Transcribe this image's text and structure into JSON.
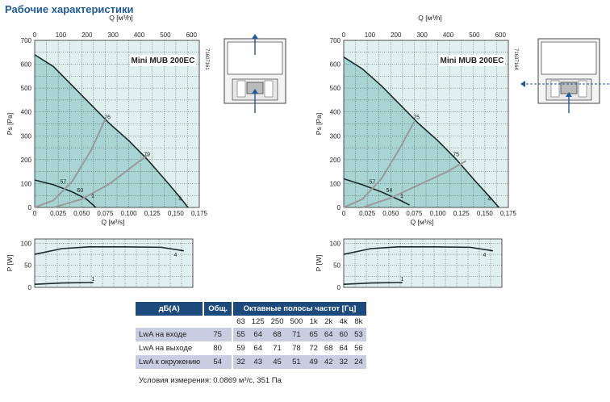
{
  "title": "Рабочие характеристики",
  "charts": [
    {
      "model": "Mini MUB 200EC",
      "code": "71607161",
      "top_axis_label": "Q [м³/h]",
      "top_ticks": [
        "0",
        "100",
        "200",
        "300",
        "400",
        "500",
        "600"
      ],
      "bottom_axis_label": "Q [м³/s]",
      "bottom_ticks": [
        "0",
        "0,025",
        "0,050",
        "0,075",
        "0,100",
        "0,125",
        "0,150",
        "0,175"
      ],
      "ps_label": "Ps [Pa]",
      "ps_ticks": [
        "0",
        "100",
        "200",
        "300",
        "400",
        "500",
        "600",
        "700"
      ],
      "p_label": "P [W]",
      "p_ticks": [
        "0",
        "50",
        "100"
      ],
      "curve_labels": [
        "76",
        "79",
        "57",
        "60",
        "4",
        "1",
        "4",
        "1"
      ]
    },
    {
      "model": "Mini MUB 200EC",
      "code": "71637164",
      "top_axis_label": "Q [м³/h]",
      "top_ticks": [
        "0",
        "100",
        "200",
        "300",
        "400",
        "500",
        "600"
      ],
      "bottom_axis_label": "Q [м³/s]",
      "bottom_ticks": [
        "0",
        "0,025",
        "0,050",
        "0,075",
        "0,100",
        "0,125",
        "0,150",
        "0,175"
      ],
      "ps_label": "Ps [Pa]",
      "ps_ticks": [
        "0",
        "100",
        "200",
        "300",
        "400",
        "500",
        "600",
        "700"
      ],
      "p_label": "P [W]",
      "p_ticks": [
        "0",
        "50",
        "100"
      ],
      "curve_labels": [
        "75",
        "75",
        "57",
        "54",
        "4",
        "1",
        "4",
        "1"
      ]
    }
  ],
  "chart_data": [
    {
      "type": "line",
      "title": "Mini MUB 200EC",
      "xlabel": "Q [м³/s]",
      "ylabel": "Ps [Pa]",
      "xlim": [
        0,
        0.175
      ],
      "ylim": [
        0,
        700
      ],
      "series": [
        {
          "name": "4",
          "x": [
            0,
            0.02,
            0.04,
            0.06,
            0.08,
            0.1,
            0.12,
            0.14,
            0.155,
            0.163
          ],
          "y": [
            640,
            590,
            510,
            430,
            350,
            280,
            200,
            110,
            40,
            0
          ]
        },
        {
          "name": "1",
          "x": [
            0,
            0.02,
            0.04,
            0.055,
            0.065
          ],
          "y": [
            115,
            95,
            65,
            35,
            0
          ]
        },
        {
          "name": "76",
          "x": [
            0,
            0.02,
            0.04,
            0.06,
            0.075
          ],
          "y": [
            0,
            30,
            110,
            240,
            370
          ]
        },
        {
          "name": "79",
          "x": [
            0.02,
            0.05,
            0.08,
            0.1,
            0.12
          ],
          "y": [
            0,
            35,
            100,
            160,
            220
          ]
        }
      ]
    },
    {
      "type": "line",
      "title": "",
      "xlabel": "Q [м³/s]",
      "ylabel": "P [W]",
      "xlim": [
        0,
        0.175
      ],
      "ylim": [
        0,
        110
      ],
      "series": [
        {
          "name": "4",
          "x": [
            0,
            0.03,
            0.06,
            0.1,
            0.14,
            0.165
          ],
          "y": [
            75,
            88,
            92,
            92,
            91,
            83
          ]
        },
        {
          "name": "1",
          "x": [
            0,
            0.03,
            0.06,
            0.065
          ],
          "y": [
            7,
            10,
            11,
            11
          ]
        }
      ]
    },
    {
      "type": "line",
      "title": "Mini MUB 200EC",
      "xlabel": "Q [м³/s]",
      "ylabel": "Ps [Pa]",
      "xlim": [
        0,
        0.175
      ],
      "ylim": [
        0,
        700
      ],
      "series": [
        {
          "name": "4",
          "x": [
            0,
            0.02,
            0.04,
            0.06,
            0.08,
            0.1,
            0.12,
            0.14,
            0.155,
            0.165
          ],
          "y": [
            630,
            580,
            510,
            430,
            350,
            280,
            200,
            110,
            45,
            0
          ]
        },
        {
          "name": "1",
          "x": [
            0,
            0.02,
            0.04,
            0.06,
            0.07
          ],
          "y": [
            120,
            95,
            65,
            30,
            10
          ]
        },
        {
          "name": "75",
          "x": [
            0,
            0.02,
            0.04,
            0.06,
            0.075
          ],
          "y": [
            0,
            35,
            120,
            250,
            360
          ]
        },
        {
          "name": "75",
          "x": [
            0.02,
            0.05,
            0.08,
            0.11,
            0.13
          ],
          "y": [
            0,
            40,
            95,
            150,
            195
          ]
        }
      ]
    },
    {
      "type": "line",
      "title": "",
      "xlabel": "Q [м³/s]",
      "ylabel": "P [W]",
      "xlim": [
        0,
        0.175
      ],
      "ylim": [
        0,
        110
      ],
      "series": [
        {
          "name": "4",
          "x": [
            0,
            0.03,
            0.06,
            0.1,
            0.14,
            0.165
          ],
          "y": [
            75,
            88,
            92,
            92,
            91,
            83
          ]
        },
        {
          "name": "1",
          "x": [
            0,
            0.03,
            0.06,
            0.065
          ],
          "y": [
            7,
            10,
            11,
            11
          ]
        }
      ]
    }
  ],
  "table": {
    "header_left": "дБ(А)",
    "header_total": "Общ.",
    "header_bands": "Октавные полосы частот [Гц]",
    "freqs": [
      "63",
      "125",
      "250",
      "500",
      "1k",
      "2k",
      "4k",
      "8k"
    ],
    "rows": [
      {
        "label": "LwA на входе",
        "total": "75",
        "values": [
          "55",
          "64",
          "68",
          "71",
          "65",
          "64",
          "60",
          "53"
        ]
      },
      {
        "label": "LwA на выходе",
        "total": "80",
        "values": [
          "59",
          "64",
          "71",
          "78",
          "72",
          "68",
          "64",
          "56"
        ]
      },
      {
        "label": "LwA к окружению",
        "total": "54",
        "values": [
          "32",
          "43",
          "45",
          "51",
          "49",
          "42",
          "32",
          "24"
        ]
      }
    ]
  },
  "conditions": "Условия измерения: 0.0869 м³/с, 351 Па",
  "colors": {
    "title": "#1f5a9a",
    "fill": "#a8d4d4",
    "plot_bg": "#dff0ee",
    "header": "#1c4a7d"
  }
}
